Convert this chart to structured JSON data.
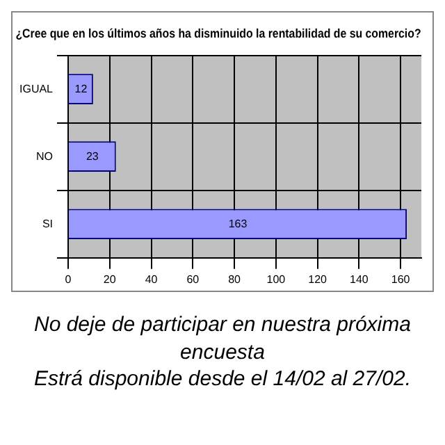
{
  "chart_data": {
    "type": "bar",
    "orientation": "horizontal",
    "title": "¿Cree que en los últimos años ha disminuido la rentabilidad de su comercio?",
    "categories": [
      "IGUAL",
      "NO",
      "SI"
    ],
    "values": [
      12,
      23,
      163
    ],
    "color": "#9999ff",
    "xlim": [
      0,
      170
    ],
    "xticks": [
      0,
      20,
      40,
      60,
      80,
      100,
      120,
      140,
      160
    ],
    "grid": true,
    "data_labels": true,
    "annotations": [
      "No deje de participar en nuestra próxima encuesta",
      "Estrá disponible desde el 14/02 al 27/02."
    ]
  }
}
